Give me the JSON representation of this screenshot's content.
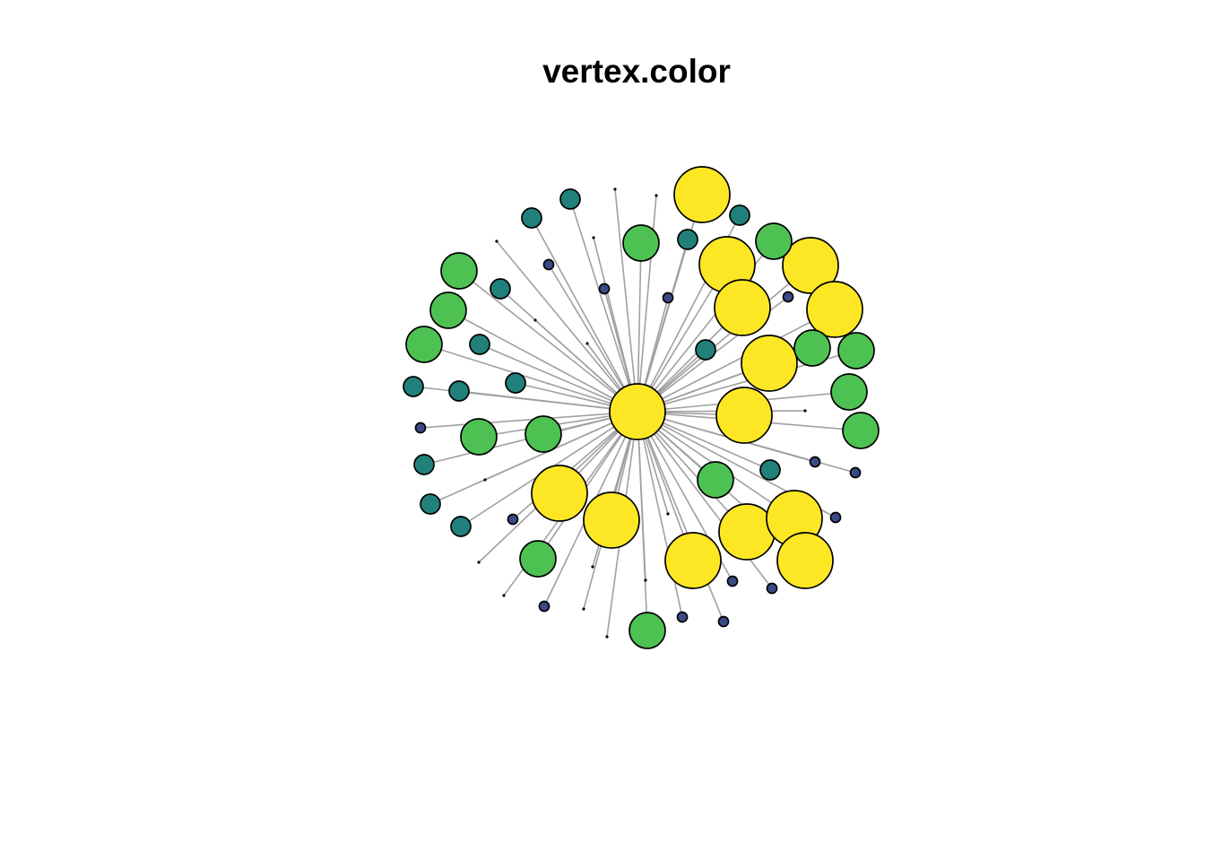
{
  "title": "vertex.color",
  "graph": {
    "type": "star-network",
    "edge_color": "#a0a0a0",
    "node_border_color": "#000000",
    "palette": {
      "yellow": "#fde725",
      "green": "#4ec153",
      "teal": "#21807a",
      "navy": "#3b4a86",
      "black": "#000000"
    }
  }
}
